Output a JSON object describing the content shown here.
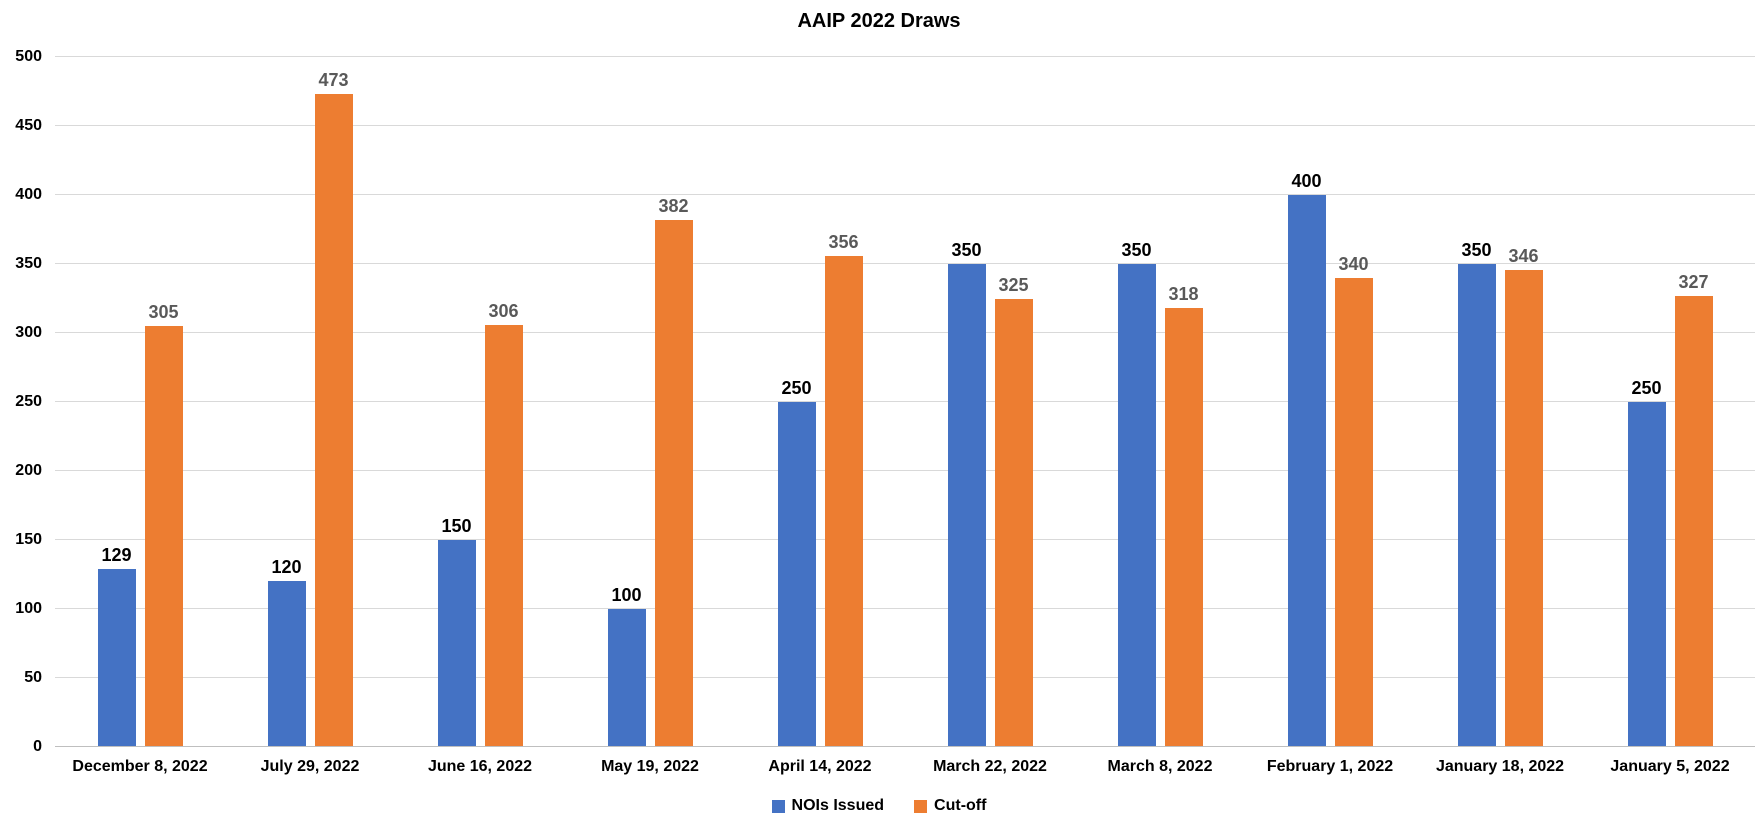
{
  "chart_data": {
    "type": "bar",
    "title": "AAIP 2022 Draws",
    "categories": [
      "December 8, 2022",
      "July 29, 2022",
      "June 16, 2022",
      "May 19, 2022",
      "April 14, 2022",
      "March 22, 2022",
      "March 8, 2022",
      "February 1, 2022",
      "January 18, 2022",
      "January 5, 2022"
    ],
    "series": [
      {
        "name": "NOIs Issued",
        "color": "#4472C4",
        "label_color": "#000000",
        "values": [
          129,
          120,
          150,
          100,
          250,
          350,
          350,
          400,
          350,
          250
        ]
      },
      {
        "name": "Cut-off",
        "color": "#ED7D31",
        "label_color": "#595959",
        "values": [
          305,
          473,
          306,
          382,
          356,
          325,
          318,
          340,
          346,
          327
        ]
      }
    ],
    "xlabel": "",
    "ylabel": "",
    "ylim": [
      0,
      500
    ],
    "yticks": [
      0,
      50,
      100,
      150,
      200,
      250,
      300,
      350,
      400,
      450,
      500
    ],
    "grid": "horizontal",
    "gridline_color": "#D9D9D9",
    "axis_line_color": "#BFBFBF",
    "legend_position": "bottom"
  }
}
